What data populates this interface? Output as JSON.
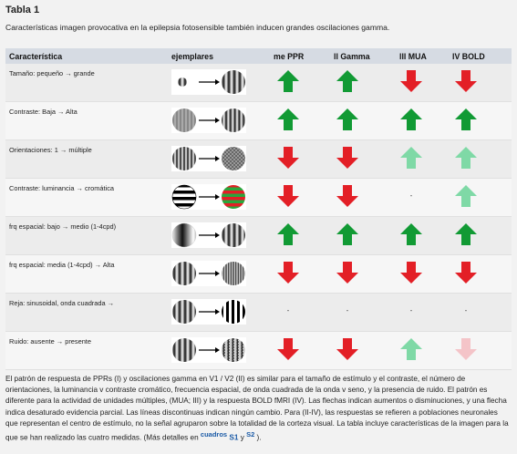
{
  "title": "Tabla 1",
  "subtitle": "Características imagen provocativa en la epilepsia fotosensible también inducen grandes oscilaciones gamma.",
  "headers": [
    "Característica",
    "ejemplares",
    "me PPR",
    "ll Gamma",
    "lll MUA",
    "lV BOLD"
  ],
  "colors": {
    "up_green": "#119a34",
    "down_red": "#e31f26",
    "light_green": "#7fd9a6",
    "light_pink": "#f4c4c8"
  },
  "rows": [
    {
      "label": "Tamaño: pequeño → grande",
      "cells": [
        "up",
        "up",
        "down",
        "down"
      ]
    },
    {
      "label": "Contraste: Baja → Alta",
      "cells": [
        "up",
        "up",
        "up",
        "up"
      ]
    },
    {
      "label": "Orientaciones: 1 → múltiple",
      "cells": [
        "down",
        "down",
        "up-light",
        "up-light"
      ]
    },
    {
      "label": "Contraste: luminancia → cromática",
      "cells": [
        "down",
        "down",
        "-",
        "up-light"
      ]
    },
    {
      "label": "frq espacial: bajo → medio (1-4cpd)",
      "cells": [
        "up",
        "up",
        "up",
        "up"
      ]
    },
    {
      "label": "frq espacial: media (1-4cpd) → Alta",
      "cells": [
        "down",
        "down",
        "down",
        "down"
      ]
    },
    {
      "label": "Reja: sinusoidal, onda cuadrada →",
      "cells": [
        "-",
        "-",
        "-",
        "-"
      ]
    },
    {
      "label": "Ruido: ausente → presente",
      "cells": [
        "down",
        "down",
        "up-light",
        "down-light"
      ]
    }
  ],
  "footnote": {
    "text": "El patrón de respuesta de PPRs (I) y oscilaciones gamma en V1 / V2 (II) es similar para el tamaño de estímulo y el contraste, el número de orientaciones, la luminancia v contraste cromático, frecuencia espacial, de onda cuadrada de la onda v seno, y la presencia de ruido. El patrón es diferente para la actividad de unidades múltiples, (MUA; III) y la respuesta BOLD fMRI (IV). Las flechas indican aumentos o disminuciones, y una flecha indica desaturado evidencia parcial. Las líneas discontinuas indican ningún cambio. Para (II-IV), las respuestas se refieren a poblaciones neuronales que representan el centro de estímulo, no la señal agruparon sobre la totalidad de la corteza visual. La tabla incluye características de la imagen para la que se han realizado las cuatro medidas. (Más detalles en",
    "link_cuadros": "cuadros",
    "link_s1": "S1",
    "y": "y",
    "link_s2": "S2",
    "end": ")."
  }
}
